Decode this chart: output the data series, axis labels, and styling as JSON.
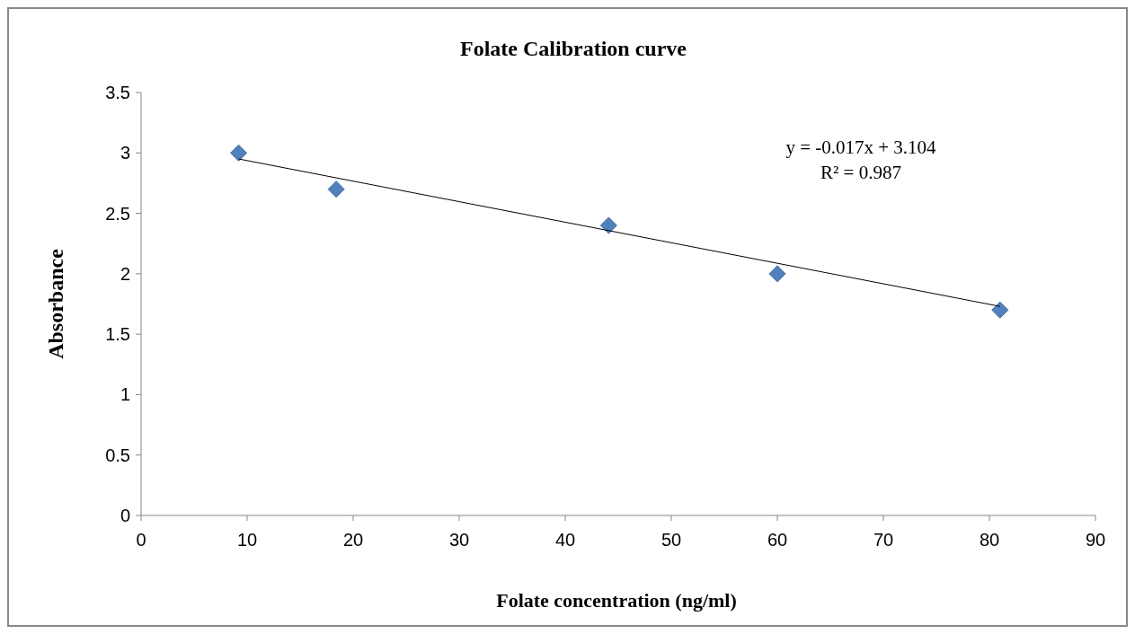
{
  "chart_data": {
    "type": "scatter",
    "title": "Folate Calibration curve",
    "xlabel": "Folate concentration (ng/ml)",
    "ylabel": "Absorbance",
    "annotations": [
      "y = -0.017x + 3.104",
      "R² = 0.987"
    ],
    "x": [
      9.2,
      18.4,
      44.1,
      60,
      81
    ],
    "series": [
      {
        "color": "#4f81bd",
        "marker": "diamond",
        "values": [
          3.0,
          2.7,
          2.4,
          2.0,
          1.7
        ]
      },
      {
        "type": "line",
        "color": "#000000",
        "x": [
          9.2,
          81
        ],
        "values": [
          2.95,
          1.73
        ],
        "marker": "none",
        "line_style": "solid"
      }
    ],
    "xlim": [
      0,
      90
    ],
    "xticks": [
      0,
      10,
      20,
      30,
      40,
      50,
      60,
      70,
      80,
      90
    ],
    "ylim": [
      0,
      3.5
    ],
    "yticks": [
      0,
      0.5,
      1,
      1.5,
      2,
      2.5,
      3,
      3.5
    ],
    "grid": false
  }
}
